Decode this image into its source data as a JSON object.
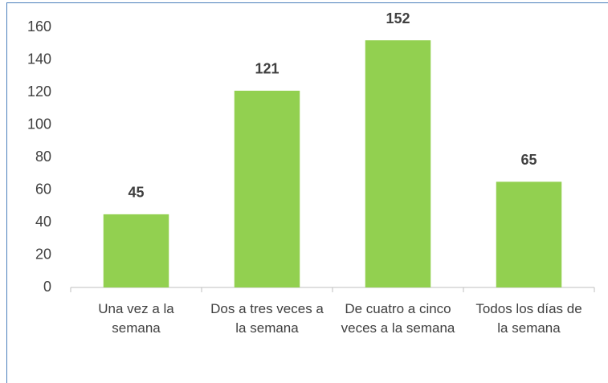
{
  "chart_data": {
    "type": "bar",
    "categories": [
      "Una vez a la semana",
      "Dos a tres veces a la semana",
      "De cuatro a cinco veces a la semana",
      "Todos los días de la semana"
    ],
    "values": [
      45,
      121,
      152,
      65
    ],
    "color": "#92d050",
    "ylim": [
      0,
      160
    ],
    "yticks": [
      0,
      20,
      40,
      60,
      80,
      100,
      120,
      140,
      160
    ],
    "grid": false
  }
}
